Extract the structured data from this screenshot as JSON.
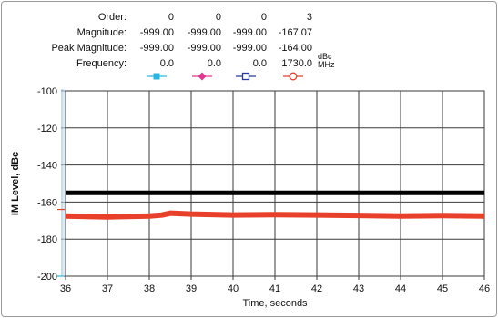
{
  "table": {
    "rows": [
      {
        "label": "Order:",
        "values": [
          "0",
          "0",
          "0",
          "3"
        ]
      },
      {
        "label": "Magnitude:",
        "values": [
          "-999.00",
          "-999.00",
          "-999.00",
          "-167.07"
        ]
      },
      {
        "label": "Peak Magnitude:",
        "values": [
          "-999.00",
          "-999.00",
          "-999.00",
          "-164.00"
        ]
      },
      {
        "label": "Frequency:",
        "values": [
          "0.0",
          "0.0",
          "0.0",
          "1730.0"
        ]
      }
    ],
    "units": {
      "magnitude": "dBc",
      "frequency": "MHz"
    },
    "markers": [
      {
        "shape": "square-filled",
        "color": "#29b6e0"
      },
      {
        "shape": "diamond-filled",
        "color": "#e0388f"
      },
      {
        "shape": "square-open",
        "color": "#2b3a9a"
      },
      {
        "shape": "circle-open",
        "color": "#e8402a"
      }
    ]
  },
  "chart_data": {
    "type": "line",
    "title": "",
    "xlabel": "Time, seconds",
    "ylabel": "IM Level, dBc",
    "xlim": [
      36,
      46
    ],
    "ylim": [
      -200,
      -100
    ],
    "x_ticks": [
      "36",
      "37",
      "38",
      "39",
      "40",
      "41",
      "42",
      "43",
      "44",
      "45",
      "46"
    ],
    "y_ticks": [
      "-100",
      "-120",
      "-140",
      "-160",
      "-180",
      "-200"
    ],
    "grid": true,
    "series": [
      {
        "color": "#000000",
        "x": [
          36.0,
          46.0
        ],
        "y": [
          -155.0,
          -155.0
        ]
      },
      {
        "color": "#e8402a",
        "x": [
          36.0,
          37.0,
          38.0,
          38.3,
          38.5,
          39.0,
          40.0,
          41.0,
          42.0,
          43.0,
          44.0,
          45.0,
          46.0
        ],
        "y": [
          -167.5,
          -168.0,
          -167.5,
          -167.0,
          -166.0,
          -166.5,
          -167.0,
          -166.8,
          -167.0,
          -167.2,
          -167.5,
          -167.3,
          -167.5
        ]
      }
    ],
    "marker_line_value": -164.0
  }
}
